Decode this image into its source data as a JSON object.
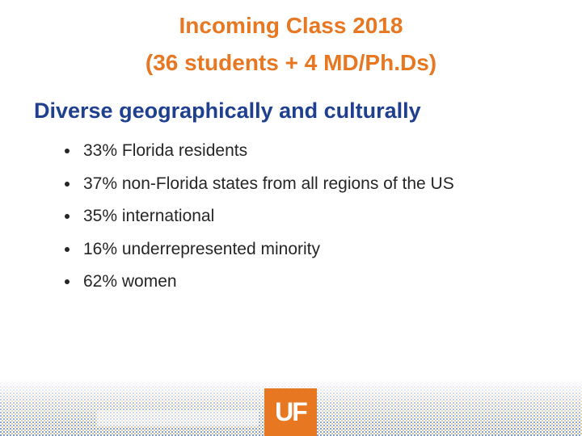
{
  "title": {
    "line1": "Incoming Class 2018",
    "line2": "(36 students + 4 MD/Ph.Ds)"
  },
  "heading": "Diverse geographically and culturally",
  "bullets": [
    "33% Florida residents",
    "37% non-Florida states from all regions of the US",
    "35% international",
    "16% underrepresented minority",
    "62% women"
  ],
  "footer": {
    "logo": "UF"
  }
}
